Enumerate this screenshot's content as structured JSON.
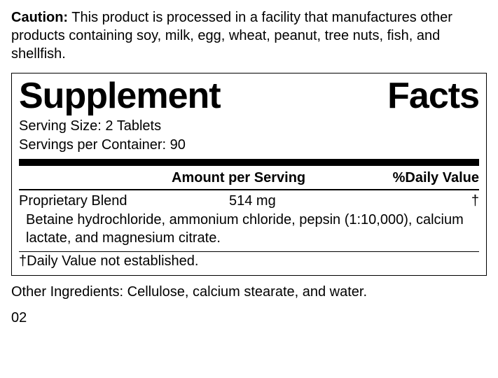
{
  "caution": {
    "label": "Caution:",
    "text": " This product is processed in a facility that manufactures other products containing soy, milk, egg, wheat, peanut, tree nuts, fish, and shellfish."
  },
  "panel": {
    "title_left": "Supplement",
    "title_right": "Facts",
    "serving_size": "Serving Size: 2 Tablets",
    "servings_per_container": "Servings per Container: 90",
    "header_amount": "Amount per Serving",
    "header_dv": "%Daily Value",
    "row": {
      "name": "Proprietary Blend",
      "amount": "514 mg",
      "dv": "†"
    },
    "ingredients": "Betaine hydrochloride, ammonium chloride, pepsin (1:10,000), calcium lactate, and magnesium citrate.",
    "footnote": "†Daily Value not established."
  },
  "other_ingredients": "Other Ingredients: Cellulose, calcium stearate, and water.",
  "code": "02",
  "style": {
    "text_color": "#000000",
    "background_color": "#ffffff",
    "title_fontsize": 52,
    "body_fontsize": 20
  }
}
